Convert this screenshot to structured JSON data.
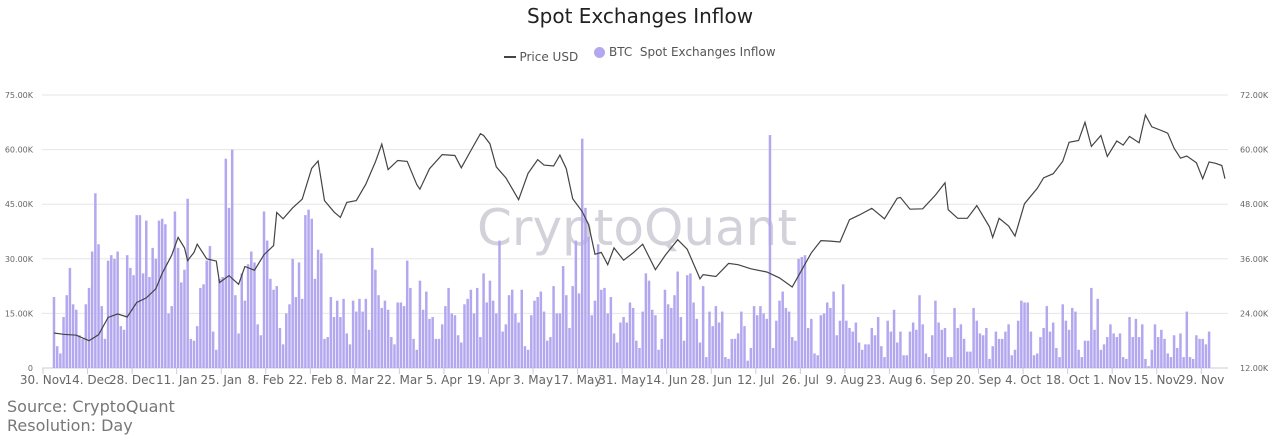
{
  "chart_data": {
    "type": "bar+line",
    "title": "Spot Exchanges Inflow",
    "legend": {
      "position": "top",
      "items": [
        "Price USD",
        "BTC  Spot Exchanges Inflow"
      ]
    },
    "colors": {
      "bars": "#b3a8ef",
      "price": "#444444",
      "grid": "#e6e6e6",
      "watermark": "#d3d2da"
    },
    "watermark": "CryptoQuant",
    "grid": true,
    "x_range": [
      "2020-11-30",
      "2021-12-03"
    ],
    "x_ticks": [
      "30. Nov",
      "14. Dec",
      "28. Dec",
      "11. Jan",
      "25. Jan",
      "8. Feb",
      "22. Feb",
      "8. Mar",
      "22. Mar",
      "5. Apr",
      "19. Apr",
      "3. May",
      "17. May",
      "31. May",
      "14. Jun",
      "28. Jun",
      "12. Jul",
      "26. Jul",
      "9. Aug",
      "23. Aug",
      "6. Sep",
      "20. Sep",
      "4. Oct",
      "18. Oct",
      "1. Nov",
      "15. Nov",
      "29. Nov"
    ],
    "y_left": {
      "range": [
        0,
        75
      ],
      "unit": "K",
      "ticks": [
        "0",
        "15.00K",
        "30.00K",
        "45.00K",
        "60.00K",
        "75.00K"
      ]
    },
    "y_right": {
      "range": [
        12,
        72
      ],
      "unit": "K",
      "ticks": [
        "12.00K",
        "24.00K",
        "36.00K",
        "48.00K",
        "60.00K",
        "72.00K"
      ]
    },
    "series": [
      {
        "name": "BTC  Spot Exchanges Inflow",
        "type": "bar",
        "axis": "left",
        "values_k": [
          19.5,
          6,
          4,
          14,
          20,
          27.5,
          17.5,
          16,
          9,
          8,
          17.5,
          22,
          32,
          48,
          34,
          17,
          8,
          29.5,
          31,
          30,
          32,
          11.5,
          10.5,
          31,
          27.5,
          25.5,
          42,
          42,
          26,
          40.5,
          25,
          33,
          30,
          40.5,
          41,
          39.5,
          15,
          17,
          43,
          33,
          23.5,
          27,
          46.5,
          8,
          7.5,
          11.5,
          22,
          23,
          29.5,
          33.5,
          10,
          5,
          24.5,
          25,
          57.5,
          44,
          60,
          20,
          9.5,
          26,
          18.5,
          28.5,
          32,
          29,
          12,
          9,
          43,
          35,
          24.5,
          21.5,
          22.5,
          11,
          6.5,
          15,
          17.5,
          30,
          19.5,
          29,
          19,
          42,
          43.5,
          41,
          24.5,
          32.5,
          31.5,
          8,
          8.5,
          19.5,
          14,
          18.5,
          14,
          19,
          9.5,
          6.5,
          18.5,
          15.5,
          19,
          15.5,
          19,
          10.5,
          33,
          27,
          20,
          16.5,
          18.5,
          16,
          8.5,
          6.5,
          18,
          18,
          17,
          29.5,
          22,
          8,
          5,
          24,
          16,
          21,
          13.5,
          14,
          8,
          8,
          12,
          17,
          22,
          15,
          14.5,
          9,
          7,
          17.5,
          19,
          21.5,
          15,
          22,
          8.5,
          26,
          18,
          24,
          18.5,
          15,
          35,
          10,
          12,
          20,
          21.5,
          15,
          12.5,
          21.5,
          6,
          5,
          14.5,
          18.5,
          19.5,
          21,
          15.5,
          7.5,
          8.5,
          22.5,
          15,
          15,
          28,
          20,
          11,
          22.5,
          35,
          20.5,
          63,
          44,
          36,
          14.5,
          18.5,
          34,
          21.5,
          22,
          15,
          19.5,
          9.5,
          7,
          12.5,
          14,
          12.5,
          18,
          16.5,
          7.5,
          5.5,
          15.5,
          26,
          24,
          16,
          14.5,
          5,
          8,
          21.5,
          17.5,
          16.5,
          20,
          26.5,
          14,
          7.5,
          25.5,
          26,
          18,
          13.5,
          7,
          22.5,
          3,
          15.5,
          11.5,
          17,
          12.5,
          15.5,
          3,
          2.5,
          8,
          8,
          9.5,
          15.5,
          11.5,
          2,
          5.5,
          17,
          14.5,
          17,
          15,
          13.5,
          64,
          5.5,
          13,
          18.5,
          21,
          16.5,
          15.5,
          8.5,
          7.5,
          30,
          30.5,
          31,
          11,
          13.5,
          4,
          3.5,
          14.5,
          15,
          18,
          16.5,
          21,
          9,
          13,
          23,
          13,
          11,
          10,
          12.5,
          7,
          5,
          6.5,
          6.5,
          11,
          9,
          14,
          6,
          3,
          13,
          10,
          16,
          7,
          10,
          3.5,
          3.5,
          10,
          12.5,
          10.5,
          20,
          12,
          4,
          3,
          9,
          18.5,
          12.5,
          10.5,
          11,
          3,
          3,
          16.5,
          11,
          12,
          8,
          4.5,
          4.5,
          16.5,
          13,
          9.5,
          9,
          11,
          2.5,
          6,
          10,
          8,
          8,
          10,
          12,
          3.5,
          5,
          13,
          18.5,
          18,
          18,
          10,
          3.5,
          4,
          8.5,
          11,
          17,
          10,
          12.5,
          5.5,
          3,
          17.5,
          13,
          10.5,
          16.5,
          15.5,
          5,
          3,
          7.5,
          7.5,
          22,
          10.5,
          19,
          5,
          6.5,
          8.5,
          12,
          9.5,
          8.5,
          9.5,
          3,
          2.5,
          14,
          8.5,
          13.5,
          8.5,
          12,
          2.5,
          0.5,
          5,
          12,
          8.5,
          10.5,
          8,
          4,
          3,
          9,
          5.5,
          9.5,
          3,
          15.5,
          3,
          2.5,
          9,
          8,
          8,
          6.5,
          10
        ]
      },
      {
        "name": "Price USD",
        "type": "line",
        "axis": "right",
        "points_k": [
          [
            "2020-11-30",
            19.7
          ],
          [
            "2020-12-03",
            19.4
          ],
          [
            "2020-12-07",
            19.2
          ],
          [
            "2020-12-11",
            18.0
          ],
          [
            "2020-12-14",
            19.3
          ],
          [
            "2020-12-17",
            23.1
          ],
          [
            "2020-12-20",
            23.9
          ],
          [
            "2020-12-23",
            23.2
          ],
          [
            "2020-12-26",
            26.4
          ],
          [
            "2020-12-29",
            27.4
          ],
          [
            "2021-01-01",
            29.4
          ],
          [
            "2021-01-03",
            32.8
          ],
          [
            "2021-01-06",
            36.8
          ],
          [
            "2021-01-08",
            40.7
          ],
          [
            "2021-01-10",
            38.4
          ],
          [
            "2021-01-11",
            35.6
          ],
          [
            "2021-01-13",
            37.4
          ],
          [
            "2021-01-14",
            39.2
          ],
          [
            "2021-01-17",
            36.0
          ],
          [
            "2021-01-20",
            35.5
          ],
          [
            "2021-01-21",
            30.8
          ],
          [
            "2021-01-24",
            32.3
          ],
          [
            "2021-01-27",
            30.4
          ],
          [
            "2021-01-29",
            34.3
          ],
          [
            "2021-02-01",
            33.5
          ],
          [
            "2021-02-04",
            36.9
          ],
          [
            "2021-02-07",
            38.9
          ],
          [
            "2021-02-08",
            46.2
          ],
          [
            "2021-02-10",
            44.8
          ],
          [
            "2021-02-13",
            47.2
          ],
          [
            "2021-02-16",
            49.1
          ],
          [
            "2021-02-19",
            55.9
          ],
          [
            "2021-02-21",
            57.5
          ],
          [
            "2021-02-23",
            48.8
          ],
          [
            "2021-02-26",
            46.3
          ],
          [
            "2021-02-28",
            45.1
          ],
          [
            "2021-03-02",
            48.4
          ],
          [
            "2021-03-05",
            48.8
          ],
          [
            "2021-03-08",
            52.4
          ],
          [
            "2021-03-11",
            57.3
          ],
          [
            "2021-03-13",
            61.2
          ],
          [
            "2021-03-15",
            55.6
          ],
          [
            "2021-03-18",
            57.6
          ],
          [
            "2021-03-21",
            57.4
          ],
          [
            "2021-03-24",
            52.3
          ],
          [
            "2021-03-25",
            51.3
          ],
          [
            "2021-03-28",
            55.8
          ],
          [
            "2021-04-01",
            58.9
          ],
          [
            "2021-04-05",
            58.7
          ],
          [
            "2021-04-07",
            56.0
          ],
          [
            "2021-04-10",
            59.8
          ],
          [
            "2021-04-13",
            63.5
          ],
          [
            "2021-04-14",
            63.1
          ],
          [
            "2021-04-16",
            61.3
          ],
          [
            "2021-04-18",
            56.2
          ],
          [
            "2021-04-21",
            53.8
          ],
          [
            "2021-04-25",
            49.0
          ],
          [
            "2021-04-28",
            54.8
          ],
          [
            "2021-05-01",
            57.8
          ],
          [
            "2021-05-03",
            56.6
          ],
          [
            "2021-05-06",
            56.4
          ],
          [
            "2021-05-08",
            58.8
          ],
          [
            "2021-05-10",
            55.8
          ],
          [
            "2021-05-12",
            49.2
          ],
          [
            "2021-05-15",
            46.4
          ],
          [
            "2021-05-17",
            43.5
          ],
          [
            "2021-05-19",
            37.0
          ],
          [
            "2021-05-21",
            37.4
          ],
          [
            "2021-05-23",
            34.7
          ],
          [
            "2021-05-25",
            38.4
          ],
          [
            "2021-05-28",
            35.7
          ],
          [
            "2021-05-31",
            37.3
          ],
          [
            "2021-06-03",
            39.2
          ],
          [
            "2021-06-07",
            33.6
          ],
          [
            "2021-06-10",
            36.7
          ],
          [
            "2021-06-14",
            40.2
          ],
          [
            "2021-06-17",
            38.1
          ],
          [
            "2021-06-21",
            31.6
          ],
          [
            "2021-06-22",
            32.5
          ],
          [
            "2021-06-26",
            32.1
          ],
          [
            "2021-06-30",
            35.0
          ],
          [
            "2021-07-03",
            34.7
          ],
          [
            "2021-07-07",
            33.8
          ],
          [
            "2021-07-12",
            33.1
          ],
          [
            "2021-07-16",
            31.8
          ],
          [
            "2021-07-20",
            29.8
          ],
          [
            "2021-07-22",
            32.3
          ],
          [
            "2021-07-26",
            37.3
          ],
          [
            "2021-07-29",
            40.0
          ],
          [
            "2021-08-01",
            39.9
          ],
          [
            "2021-08-04",
            39.7
          ],
          [
            "2021-08-07",
            44.6
          ],
          [
            "2021-08-10",
            45.6
          ],
          [
            "2021-08-14",
            47.1
          ],
          [
            "2021-08-18",
            44.8
          ],
          [
            "2021-08-22",
            49.3
          ],
          [
            "2021-08-23",
            49.5
          ],
          [
            "2021-08-26",
            46.9
          ],
          [
            "2021-08-30",
            47.0
          ],
          [
            "2021-09-03",
            50.0
          ],
          [
            "2021-09-06",
            52.7
          ],
          [
            "2021-09-07",
            46.8
          ],
          [
            "2021-09-10",
            44.9
          ],
          [
            "2021-09-13",
            44.9
          ],
          [
            "2021-09-16",
            47.7
          ],
          [
            "2021-09-20",
            43.0
          ],
          [
            "2021-09-21",
            40.7
          ],
          [
            "2021-09-23",
            44.9
          ],
          [
            "2021-09-26",
            43.2
          ],
          [
            "2021-09-28",
            41.0
          ],
          [
            "2021-10-01",
            48.1
          ],
          [
            "2021-10-05",
            51.5
          ],
          [
            "2021-10-07",
            53.8
          ],
          [
            "2021-10-10",
            54.7
          ],
          [
            "2021-10-13",
            57.4
          ],
          [
            "2021-10-15",
            61.6
          ],
          [
            "2021-10-18",
            62.0
          ],
          [
            "2021-10-20",
            66.0
          ],
          [
            "2021-10-22",
            60.7
          ],
          [
            "2021-10-25",
            63.1
          ],
          [
            "2021-10-27",
            58.5
          ],
          [
            "2021-10-30",
            61.9
          ],
          [
            "2021-11-01",
            61.0
          ],
          [
            "2021-11-03",
            62.9
          ],
          [
            "2021-11-06",
            61.5
          ],
          [
            "2021-11-08",
            67.6
          ],
          [
            "2021-11-10",
            65.0
          ],
          [
            "2021-11-13",
            64.2
          ],
          [
            "2021-11-15",
            63.6
          ],
          [
            "2021-11-17",
            60.3
          ],
          [
            "2021-11-19",
            58.1
          ],
          [
            "2021-11-21",
            58.6
          ],
          [
            "2021-11-24",
            57.1
          ],
          [
            "2021-11-26",
            53.6
          ],
          [
            "2021-11-28",
            57.3
          ],
          [
            "2021-11-30",
            57.0
          ],
          [
            "2021-12-02",
            56.5
          ],
          [
            "2021-12-03",
            53.6
          ]
        ]
      }
    ]
  },
  "footer": {
    "source": "Source: CryptoQuant",
    "resolution": "Resolution: Day"
  }
}
